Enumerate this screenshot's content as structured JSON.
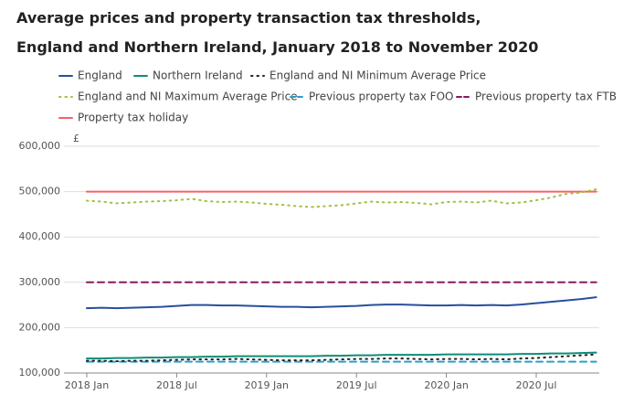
{
  "chart_data": {
    "type": "line",
    "title": "Average prices and property transaction tax thresholds, England and Northern Ireland, January 2018 to November 2020",
    "y_label": "£",
    "categories": [
      "2018 Jan",
      null,
      null,
      null,
      null,
      null,
      "2018 Jul",
      null,
      null,
      null,
      null,
      null,
      "2019 Jan",
      null,
      null,
      null,
      null,
      null,
      "2019 Jul",
      null,
      null,
      null,
      null,
      null,
      "2020 Jan",
      null,
      null,
      null,
      null,
      null,
      "2020 Jul",
      null,
      null,
      null,
      null
    ],
    "ylim": [
      100000,
      600000
    ],
    "yticks": [
      {
        "value": 100000,
        "label": "100,000"
      },
      {
        "value": 200000,
        "label": "200,000"
      },
      {
        "value": 300000,
        "label": "300,000"
      },
      {
        "value": 400000,
        "label": "400,000"
      },
      {
        "value": 500000,
        "label": "500,000"
      },
      {
        "value": 600000,
        "label": "600,000"
      }
    ],
    "grid": true,
    "series": [
      {
        "name": "England",
        "color": "#27509b",
        "style": "solid",
        "values": [
          243000,
          244000,
          243000,
          244000,
          245000,
          246000,
          248000,
          250000,
          250000,
          249000,
          249000,
          248000,
          247000,
          246000,
          246000,
          245000,
          246000,
          247000,
          248000,
          250000,
          251000,
          251000,
          250000,
          249000,
          249000,
          250000,
          249000,
          250000,
          249000,
          251000,
          254000,
          257000,
          260000,
          263000,
          267000
        ]
      },
      {
        "name": "Northern Ireland",
        "color": "#0f8c79",
        "style": "solid",
        "values": [
          132000,
          132000,
          133000,
          133000,
          134000,
          134000,
          135000,
          135000,
          136000,
          136000,
          137000,
          137000,
          137000,
          137000,
          137000,
          137000,
          138000,
          138000,
          139000,
          139000,
          140000,
          140000,
          140000,
          140000,
          141000,
          141000,
          141000,
          141000,
          141000,
          142000,
          142000,
          143000,
          143000,
          144000,
          145000
        ]
      },
      {
        "name": "England and NI Minimum Average Price",
        "color": "#222222",
        "style": "dotted",
        "values": [
          127000,
          127000,
          126000,
          127000,
          127000,
          128000,
          129000,
          130000,
          130000,
          130000,
          131000,
          130000,
          129000,
          128000,
          128000,
          128000,
          129000,
          130000,
          131000,
          131000,
          132000,
          132000,
          131000,
          130000,
          131000,
          131000,
          130000,
          131000,
          130000,
          132000,
          133000,
          135000,
          137000,
          139000,
          141000
        ]
      },
      {
        "name": "England and NI Maximum Average Price",
        "color": "#a8bd3a",
        "style": "dotted",
        "values": [
          480000,
          478000,
          474000,
          476000,
          478000,
          479000,
          481000,
          484000,
          479000,
          477000,
          478000,
          476000,
          473000,
          471000,
          468000,
          466000,
          468000,
          470000,
          474000,
          478000,
          476000,
          477000,
          475000,
          472000,
          477000,
          478000,
          476000,
          480000,
          474000,
          476000,
          481000,
          487000,
          495000,
          498000,
          505000
        ]
      },
      {
        "name": "Previous property tax FOO",
        "color": "#27a0cc",
        "style": "dashed",
        "values": [
          125000,
          125000,
          125000,
          125000,
          125000,
          125000,
          125000,
          125000,
          125000,
          125000,
          125000,
          125000,
          125000,
          125000,
          125000,
          125000,
          125000,
          125000,
          125000,
          125000,
          125000,
          125000,
          125000,
          125000,
          125000,
          125000,
          125000,
          125000,
          125000,
          125000,
          125000,
          125000,
          125000,
          125000,
          125000
        ]
      },
      {
        "name": "Previous property tax FTB",
        "color": "#871a5b",
        "style": "dashed",
        "values": [
          300000,
          300000,
          300000,
          300000,
          300000,
          300000,
          300000,
          300000,
          300000,
          300000,
          300000,
          300000,
          300000,
          300000,
          300000,
          300000,
          300000,
          300000,
          300000,
          300000,
          300000,
          300000,
          300000,
          300000,
          300000,
          300000,
          300000,
          300000,
          300000,
          300000,
          300000,
          300000,
          300000,
          300000,
          300000
        ]
      },
      {
        "name": "Property tax holiday",
        "color": "#f66068",
        "style": "solid",
        "values": [
          500000,
          500000,
          500000,
          500000,
          500000,
          500000,
          500000,
          500000,
          500000,
          500000,
          500000,
          500000,
          500000,
          500000,
          500000,
          500000,
          500000,
          500000,
          500000,
          500000,
          500000,
          500000,
          500000,
          500000,
          500000,
          500000,
          500000,
          500000,
          500000,
          500000,
          500000,
          500000,
          500000,
          500000,
          500000
        ]
      }
    ]
  }
}
